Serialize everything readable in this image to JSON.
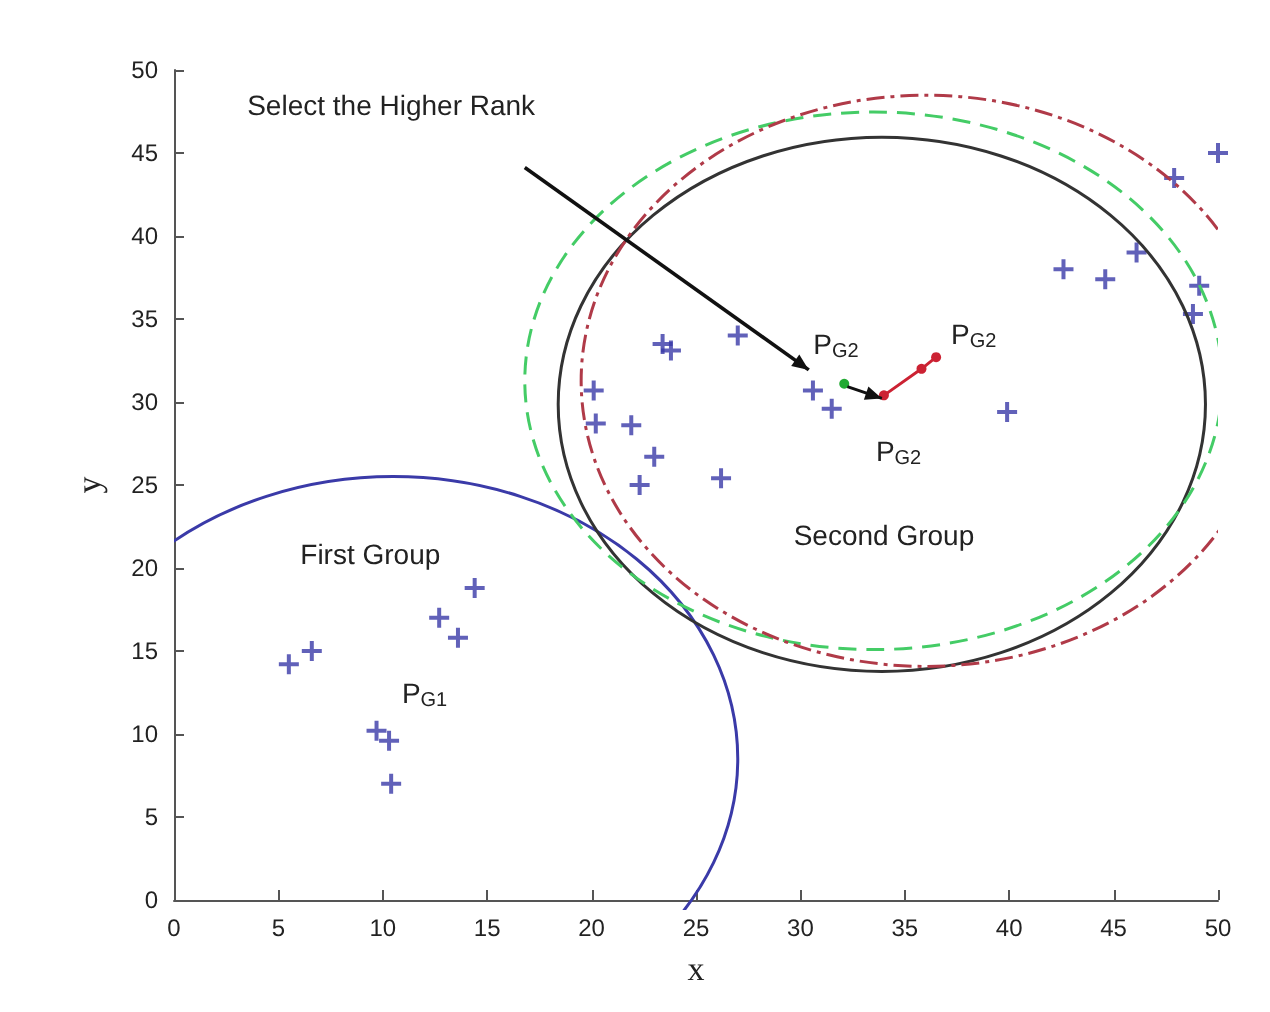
{
  "chart_data": {
    "type": "scatter",
    "xlabel": "x",
    "ylabel": "y",
    "xlim": [
      0,
      50
    ],
    "ylim": [
      0,
      50
    ],
    "xticks": [
      0,
      5,
      10,
      15,
      20,
      25,
      30,
      35,
      40,
      45,
      50
    ],
    "yticks": [
      0,
      5,
      10,
      15,
      20,
      25,
      30,
      35,
      40,
      45,
      50
    ],
    "grid": false,
    "series": [
      {
        "marker": "cross",
        "color": "#3a3aa8",
        "x": [
          5.5,
          6.6,
          9.7,
          10.3,
          10.4,
          12.7,
          13.6,
          14.4,
          20.1,
          20.2,
          21.9,
          22.3,
          23.0,
          23.4,
          23.8,
          26.2,
          27.0,
          30.6,
          31.5,
          39.9,
          42.6,
          44.6,
          46.1,
          47.9,
          48.8,
          49.1,
          50.0
        ],
        "values": [
          14.2,
          15.0,
          10.2,
          9.6,
          7.0,
          17.0,
          15.8,
          18.8,
          30.7,
          28.7,
          28.6,
          25.0,
          26.7,
          33.5,
          33.1,
          25.4,
          34.0,
          30.7,
          29.6,
          29.4,
          38.0,
          37.4,
          39.0,
          43.5,
          35.3,
          37.0,
          45.0
        ]
      },
      {
        "type": "line",
        "marker": "circle",
        "line_style": "solid",
        "color": "#22aa33",
        "x": [
          32.1
        ],
        "values": [
          31.1
        ]
      },
      {
        "type": "line",
        "marker": "circle",
        "line_style": "solid",
        "color": "#cc2233",
        "x": [
          34.0,
          35.8,
          36.5
        ],
        "values": [
          30.4,
          32.0,
          32.7
        ]
      }
    ],
    "annotations": [
      "Select the Higher Rank",
      "First Group",
      "Second Group",
      "P$_{G1}$",
      "P$_{G2}$",
      "P$_{G2}$",
      "P$_{G2}$"
    ]
  }
}
